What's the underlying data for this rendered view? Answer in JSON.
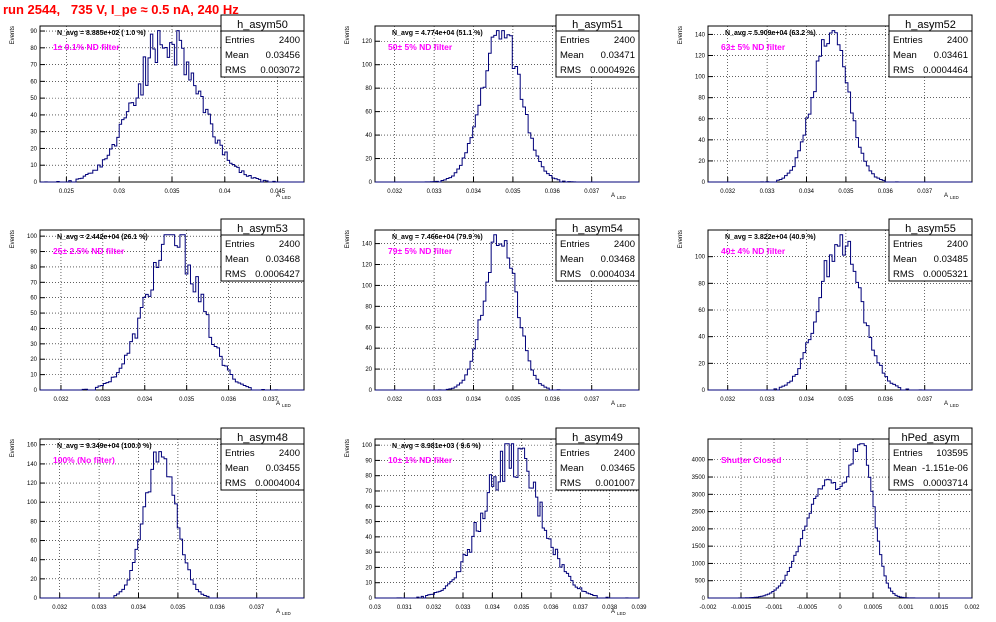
{
  "run_title": "run 2544,   735 V, I_pe ≈ 0.5 nA, 240 Hz",
  "chart_data": [
    {
      "type": "histogram",
      "name": "h_asym50",
      "navg": "N_avg = 8.885e+02 ( 1.0 %)",
      "filter": "1± 0.1% ND filter",
      "stats": [
        [
          "Entries",
          "2400"
        ],
        [
          "Mean",
          "0.03456"
        ],
        [
          "RMS",
          "0.003072"
        ]
      ],
      "ylabel": "Events",
      "xlabel": "A",
      "xlabel_sub": "LED",
      "xlim": [
        0.0225,
        0.0475
      ],
      "ylim": [
        0,
        93
      ],
      "xticks": [
        [
          "0.025",
          0.025
        ],
        [
          "0.03",
          0.03
        ],
        [
          "0.035",
          0.035
        ],
        [
          "0.04",
          0.04
        ],
        [
          "0.045",
          0.045
        ]
      ],
      "yticks": [
        0,
        10,
        20,
        30,
        40,
        50,
        60,
        70,
        80,
        90
      ],
      "hist": {
        "mean": 0.03456,
        "rms": 0.003072,
        "peak": 85,
        "wobble": 0.18,
        "bins": 110,
        "seed": 50
      }
    },
    {
      "type": "histogram",
      "name": "h_asym51",
      "navg": "N_avg = 4.774e+04 (51.1 %)",
      "filter": "50± 5% ND filter",
      "stats": [
        [
          "Entries",
          "2400"
        ],
        [
          "Mean",
          "0.03471"
        ],
        [
          "RMS",
          "0.0004926"
        ]
      ],
      "ylabel": "Events",
      "xlabel": "A",
      "xlabel_sub": "LED",
      "xlim": [
        0.0315,
        0.0382
      ],
      "ylim": [
        0,
        133
      ],
      "xticks": [
        [
          "0.032",
          0.032
        ],
        [
          "0.033",
          0.033
        ],
        [
          "0.034",
          0.034
        ],
        [
          "0.035",
          0.035
        ],
        [
          "0.036",
          0.036
        ],
        [
          "0.037",
          0.037
        ]
      ],
      "yticks": [
        0,
        20,
        40,
        60,
        80,
        100,
        120
      ],
      "hist": {
        "mean": 0.03471,
        "rms": 0.0004926,
        "peak": 128,
        "wobble": 0.1,
        "bins": 100,
        "seed": 51
      }
    },
    {
      "type": "histogram",
      "name": "h_asym52",
      "navg": "N_avg = 5.909e+04 (63.2 %)",
      "filter": "63± 5% ND filter",
      "stats": [
        [
          "Entries",
          "2400"
        ],
        [
          "Mean",
          "0.03461"
        ],
        [
          "RMS",
          "0.0004464"
        ]
      ],
      "ylabel": "Events",
      "xlabel": "A",
      "xlabel_sub": "LED",
      "xlim": [
        0.0315,
        0.0382
      ],
      "ylim": [
        0,
        148
      ],
      "xticks": [
        [
          "0.032",
          0.032
        ],
        [
          "0.033",
          0.033
        ],
        [
          "0.034",
          0.034
        ],
        [
          "0.035",
          0.035
        ],
        [
          "0.036",
          0.036
        ],
        [
          "0.037",
          0.037
        ]
      ],
      "yticks": [
        0,
        20,
        40,
        60,
        80,
        100,
        120,
        140
      ],
      "hist": {
        "mean": 0.03461,
        "rms": 0.0004464,
        "peak": 140,
        "wobble": 0.1,
        "bins": 100,
        "seed": 52
      }
    },
    {
      "type": "histogram",
      "name": "h_asym53",
      "navg": "N_avg = 2.442e+04 (26.1 %)",
      "filter": "25± 2.5% ND filter",
      "stats": [
        [
          "Entries",
          "2400"
        ],
        [
          "Mean",
          "0.03468"
        ],
        [
          "RMS",
          "0.0006427"
        ]
      ],
      "ylabel": "Events",
      "xlabel": "A",
      "xlabel_sub": "LED",
      "xlim": [
        0.0315,
        0.0378
      ],
      "ylim": [
        0,
        104
      ],
      "xticks": [
        [
          "0.032",
          0.032
        ],
        [
          "0.033",
          0.033
        ],
        [
          "0.034",
          0.034
        ],
        [
          "0.035",
          0.035
        ],
        [
          "0.036",
          0.036
        ],
        [
          "0.037",
          0.037
        ]
      ],
      "yticks": [
        0,
        10,
        20,
        30,
        40,
        50,
        60,
        70,
        80,
        90,
        100
      ],
      "hist": {
        "mean": 0.03468,
        "rms": 0.0006427,
        "peak": 98,
        "wobble": 0.14,
        "bins": 100,
        "seed": 53
      }
    },
    {
      "type": "histogram",
      "name": "h_asym54",
      "navg": "N_avg = 7.466e+04 (79.9 %)",
      "filter": "79± 5% ND filter",
      "stats": [
        [
          "Entries",
          "2400"
        ],
        [
          "Mean",
          "0.03468"
        ],
        [
          "RMS",
          "0.0004034"
        ]
      ],
      "ylabel": "Events",
      "xlabel": "A",
      "xlabel_sub": "LED",
      "xlim": [
        0.0315,
        0.0382
      ],
      "ylim": [
        0,
        153
      ],
      "xticks": [
        [
          "0.032",
          0.032
        ],
        [
          "0.033",
          0.033
        ],
        [
          "0.034",
          0.034
        ],
        [
          "0.035",
          0.035
        ],
        [
          "0.036",
          0.036
        ],
        [
          "0.037",
          0.037
        ]
      ],
      "yticks": [
        0,
        20,
        40,
        60,
        80,
        100,
        120,
        140
      ],
      "hist": {
        "mean": 0.03468,
        "rms": 0.0004034,
        "peak": 148,
        "wobble": 0.09,
        "bins": 100,
        "seed": 54
      }
    },
    {
      "type": "histogram",
      "name": "h_asym55",
      "navg": "N_avg = 3.822e+04 (40.9 %)",
      "filter": "40± 4% ND filter",
      "stats": [
        [
          "Entries",
          "2400"
        ],
        [
          "Mean",
          "0.03485"
        ],
        [
          "RMS",
          "0.0005321"
        ]
      ],
      "ylabel": "Events",
      "xlabel": "A",
      "xlabel_sub": "LED",
      "xlim": [
        0.0315,
        0.0382
      ],
      "ylim": [
        0,
        120
      ],
      "xticks": [
        [
          "0.032",
          0.032
        ],
        [
          "0.033",
          0.033
        ],
        [
          "0.034",
          0.034
        ],
        [
          "0.035",
          0.035
        ],
        [
          "0.036",
          0.036
        ],
        [
          "0.037",
          0.037
        ]
      ],
      "yticks": [
        0,
        20,
        40,
        60,
        80,
        100
      ],
      "hist": {
        "mean": 0.03485,
        "rms": 0.0005321,
        "peak": 112,
        "wobble": 0.11,
        "bins": 100,
        "seed": 55
      }
    },
    {
      "type": "histogram",
      "name": "h_asym48",
      "navg": "N_avg = 9.349e+04 (100.0 %)",
      "filter": "100% (No filter)",
      "stats": [
        [
          "Entries",
          "2400"
        ],
        [
          "Mean",
          "0.03455"
        ],
        [
          "RMS",
          "0.0004004"
        ]
      ],
      "ylabel": "Events",
      "xlabel": "A",
      "xlabel_sub": "LED",
      "xlim": [
        0.0315,
        0.0382
      ],
      "ylim": [
        0,
        166
      ],
      "xticks": [
        [
          "0.032",
          0.032
        ],
        [
          "0.033",
          0.033
        ],
        [
          "0.034",
          0.034
        ],
        [
          "0.035",
          0.035
        ],
        [
          "0.036",
          0.036
        ],
        [
          "0.037",
          0.037
        ]
      ],
      "yticks": [
        0,
        20,
        40,
        60,
        80,
        100,
        120,
        140,
        160
      ],
      "hist": {
        "mean": 0.03455,
        "rms": 0.0004004,
        "peak": 150,
        "wobble": 0.09,
        "bins": 100,
        "seed": 48
      }
    },
    {
      "type": "histogram",
      "name": "h_asym49",
      "navg": "N_avg = 8.981e+03 ( 9.6 %)",
      "filter": "10± 1% ND filter",
      "stats": [
        [
          "Entries",
          "2400"
        ],
        [
          "Mean",
          "0.03465"
        ],
        [
          "RMS",
          "0.001007"
        ]
      ],
      "ylabel": "Events",
      "xlabel": "A",
      "xlabel_sub": "LED",
      "xlim": [
        0.03,
        0.039
      ],
      "ylim": [
        0,
        104
      ],
      "xticks": [
        [
          "0.03",
          0.03
        ],
        [
          "0.031",
          0.031
        ],
        [
          "0.032",
          0.032
        ],
        [
          "0.033",
          0.033
        ],
        [
          "0.034",
          0.034
        ],
        [
          "0.035",
          0.035
        ],
        [
          "0.036",
          0.036
        ],
        [
          "0.037",
          0.037
        ],
        [
          "0.038",
          0.038
        ],
        [
          "0.039",
          0.039
        ]
      ],
      "yticks": [
        0,
        10,
        20,
        30,
        40,
        50,
        60,
        70,
        80,
        90,
        100
      ],
      "hist": {
        "mean": 0.03465,
        "rms": 0.001007,
        "peak": 92,
        "wobble": 0.16,
        "bins": 120,
        "seed": 49
      }
    },
    {
      "type": "histogram",
      "name": "hPed_asym",
      "navg": "",
      "filter": "Shutter Closed",
      "stats": [
        [
          "Entries",
          "103595"
        ],
        [
          "Mean",
          "-1.151e-06"
        ],
        [
          "RMS",
          "0.0003714"
        ]
      ],
      "ylabel": "",
      "xlabel": "",
      "xlabel_sub": "",
      "xlim": [
        -0.002,
        0.002
      ],
      "ylim": [
        0,
        4600
      ],
      "xticks": [
        [
          "-0.002",
          -0.002
        ],
        [
          "-0.0015",
          -0.0015
        ],
        [
          "-0.001",
          -0.001
        ],
        [
          "-0.0005",
          -0.0005
        ],
        [
          "0",
          0
        ],
        [
          "0.0005",
          0.0005
        ],
        [
          "0.001",
          0.001
        ],
        [
          "0.0015",
          0.0015
        ],
        [
          "0.002",
          0.002
        ]
      ],
      "yticks": [
        0,
        500,
        1000,
        1500,
        2000,
        2500,
        3000,
        3500,
        4000
      ],
      "hist": {
        "peds": true,
        "bins": 120,
        "seed": 60
      }
    }
  ]
}
